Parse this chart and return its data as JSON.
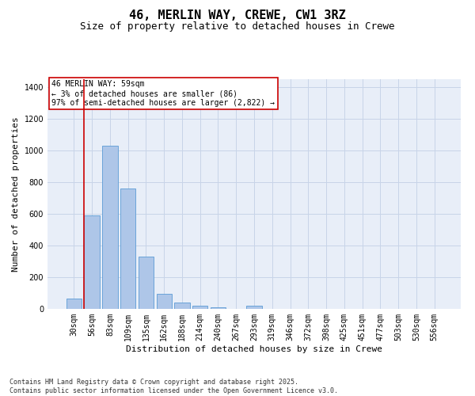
{
  "title1": "46, MERLIN WAY, CREWE, CW1 3RZ",
  "title2": "Size of property relative to detached houses in Crewe",
  "xlabel": "Distribution of detached houses by size in Crewe",
  "ylabel": "Number of detached properties",
  "categories": [
    "30sqm",
    "56sqm",
    "83sqm",
    "109sqm",
    "135sqm",
    "162sqm",
    "188sqm",
    "214sqm",
    "240sqm",
    "267sqm",
    "293sqm",
    "319sqm",
    "346sqm",
    "372sqm",
    "398sqm",
    "425sqm",
    "451sqm",
    "477sqm",
    "503sqm",
    "530sqm",
    "556sqm"
  ],
  "values": [
    65,
    590,
    1030,
    760,
    330,
    95,
    38,
    22,
    12,
    0,
    18,
    0,
    0,
    0,
    0,
    0,
    0,
    0,
    0,
    0,
    0
  ],
  "bar_color": "#aec6e8",
  "bar_edge_color": "#5b9bd5",
  "grid_color": "#c8d4e8",
  "background_color": "#e8eef8",
  "redline_color": "#cc0000",
  "annotation_text": "46 MERLIN WAY: 59sqm\n← 3% of detached houses are smaller (86)\n97% of semi-detached houses are larger (2,822) →",
  "ylim": [
    0,
    1450
  ],
  "yticks": [
    0,
    200,
    400,
    600,
    800,
    1000,
    1200,
    1400
  ],
  "footnote": "Contains HM Land Registry data © Crown copyright and database right 2025.\nContains public sector information licensed under the Open Government Licence v3.0.",
  "title_fontsize": 11,
  "subtitle_fontsize": 9,
  "axis_label_fontsize": 8,
  "tick_fontsize": 7,
  "annotation_fontsize": 7,
  "footnote_fontsize": 6
}
